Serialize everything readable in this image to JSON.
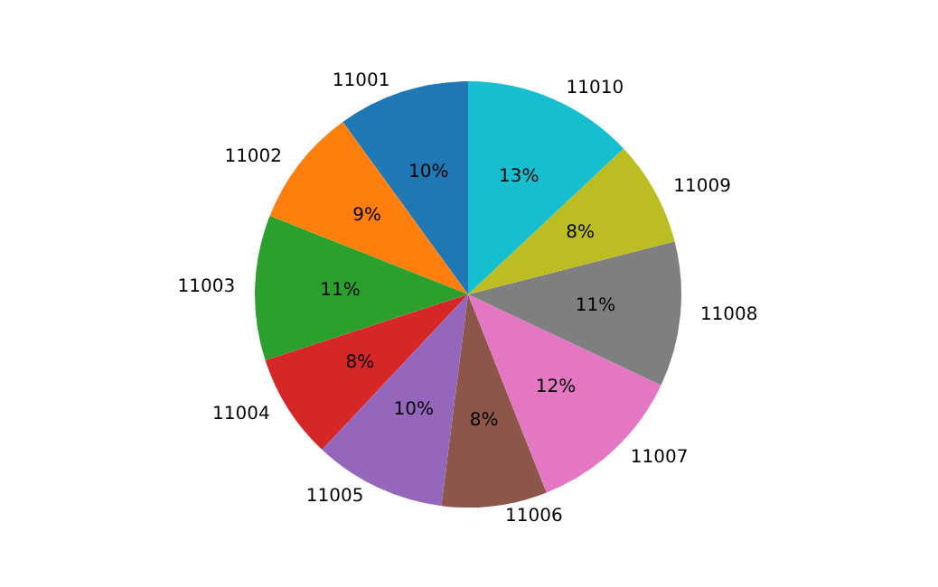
{
  "chart_data": {
    "type": "pie",
    "categories": [
      "11001",
      "11002",
      "11003",
      "11004",
      "11005",
      "11006",
      "11007",
      "11008",
      "11009",
      "11010"
    ],
    "values": [
      10,
      9,
      11,
      8,
      10,
      8,
      12,
      11,
      8,
      13
    ],
    "value_labels": [
      "10%",
      "9%",
      "11%",
      "8%",
      "10%",
      "8%",
      "12%",
      "11%",
      "8%",
      "13%"
    ],
    "colors": [
      "#1f77b4",
      "#ff7f0e",
      "#2ca02c",
      "#d62728",
      "#9467bd",
      "#8c564b",
      "#e377c2",
      "#7f7f7f",
      "#bcbd22",
      "#17becf"
    ],
    "legend": false
  }
}
